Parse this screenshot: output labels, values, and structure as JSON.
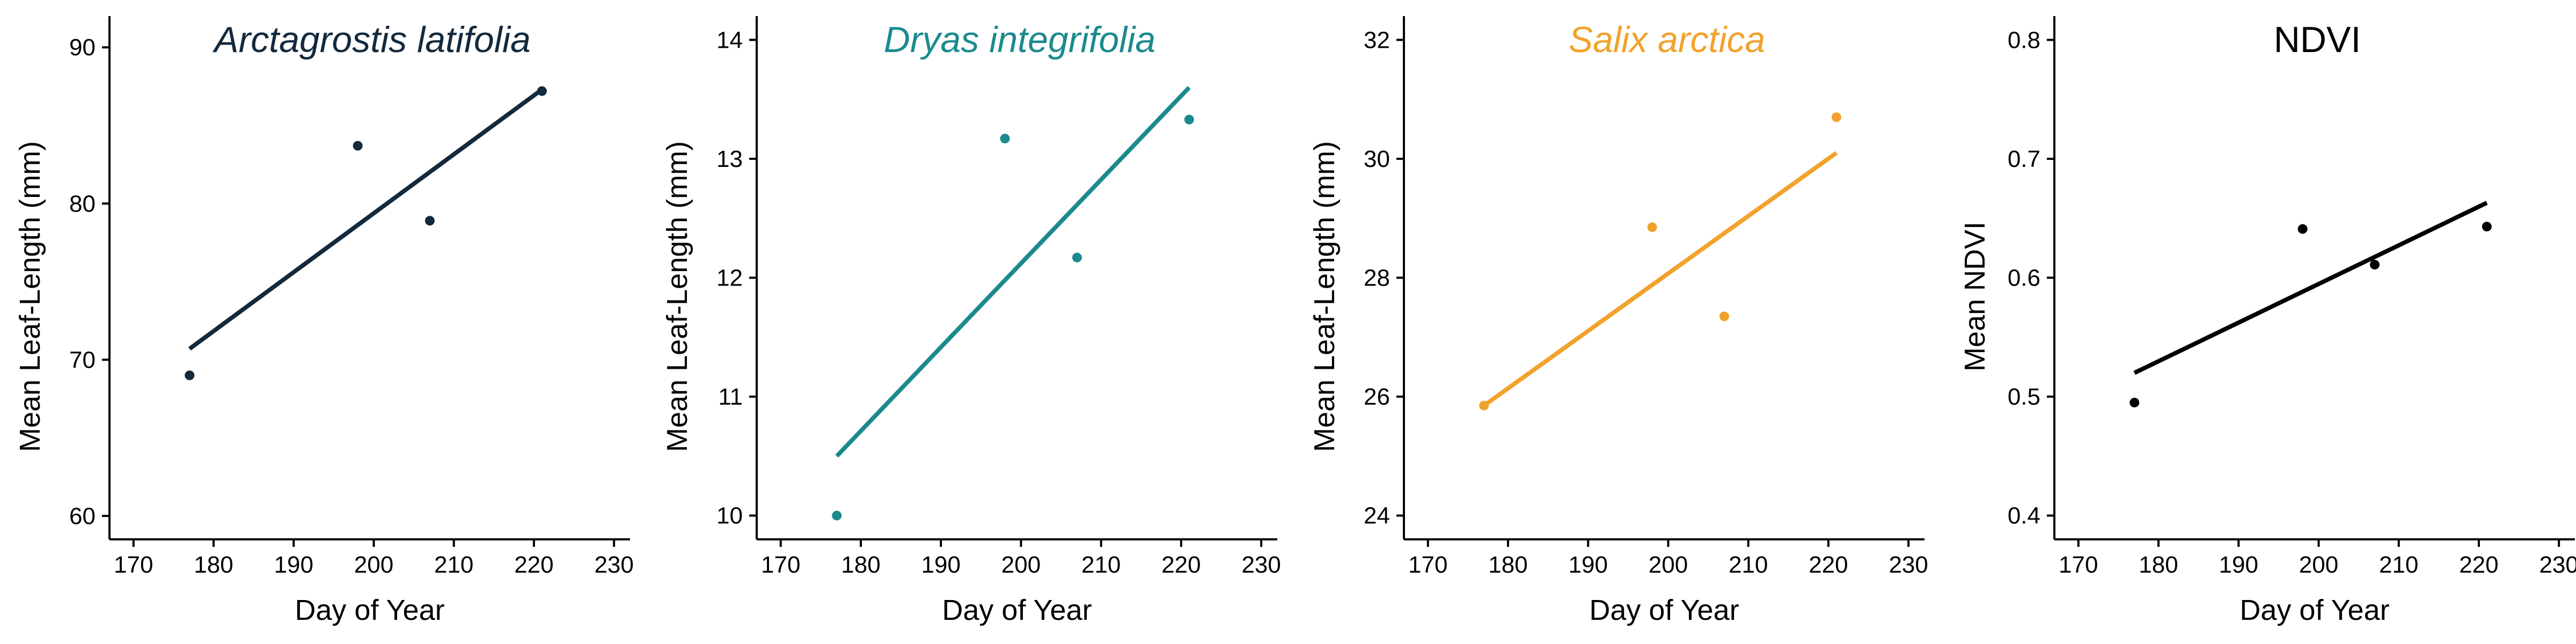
{
  "chart_data": [
    {
      "type": "scatter",
      "title": "Arctagrostis latifolia",
      "title_italic": true,
      "xlabel": "Day of Year",
      "ylabel": "Mean Leaf-Length (mm)",
      "xlim": [
        167,
        232
      ],
      "ylim": [
        58.5,
        92
      ],
      "xticks": [
        170,
        180,
        190,
        200,
        210,
        220,
        230
      ],
      "yticks": [
        60,
        70,
        80,
        90
      ],
      "color": "#13293d",
      "points": [
        {
          "x": 177,
          "y": 69.0
        },
        {
          "x": 198,
          "y": 83.7
        },
        {
          "x": 207,
          "y": 78.9
        },
        {
          "x": 221,
          "y": 87.2
        }
      ],
      "fit": {
        "x": [
          177,
          221
        ],
        "y": [
          70.7,
          87.3
        ]
      }
    },
    {
      "type": "scatter",
      "title": "Dryas integrifolia",
      "title_italic": true,
      "xlabel": "Day of Year",
      "ylabel": "Mean Leaf-Length (mm)",
      "xlim": [
        167,
        232
      ],
      "ylim": [
        9.8,
        14.2
      ],
      "xticks": [
        170,
        180,
        190,
        200,
        210,
        220,
        230
      ],
      "yticks": [
        10,
        11,
        12,
        13,
        14
      ],
      "color": "#1b8a8f",
      "points": [
        {
          "x": 177,
          "y": 10.0
        },
        {
          "x": 198,
          "y": 13.17
        },
        {
          "x": 207,
          "y": 12.17
        },
        {
          "x": 221,
          "y": 13.33
        }
      ],
      "fit": {
        "x": [
          177,
          221
        ],
        "y": [
          10.5,
          13.6
        ]
      }
    },
    {
      "type": "scatter",
      "title": "Salix arctica",
      "title_italic": true,
      "xlabel": "Day of Year",
      "ylabel": "Mean Leaf-Length (mm)",
      "xlim": [
        167,
        232
      ],
      "ylim": [
        23.6,
        32.4
      ],
      "xticks": [
        170,
        180,
        190,
        200,
        210,
        220,
        230
      ],
      "yticks": [
        24,
        26,
        28,
        30,
        32
      ],
      "color": "#f2a22c",
      "points": [
        {
          "x": 177,
          "y": 25.85
        },
        {
          "x": 198,
          "y": 28.85
        },
        {
          "x": 207,
          "y": 27.35
        },
        {
          "x": 221,
          "y": 30.7
        }
      ],
      "fit": {
        "x": [
          177,
          221
        ],
        "y": [
          25.85,
          30.1
        ]
      }
    },
    {
      "type": "scatter",
      "title": "NDVI",
      "title_italic": false,
      "xlabel": "Day of Year",
      "ylabel": "Mean NDVI",
      "xlim": [
        167,
        232
      ],
      "ylim": [
        0.38,
        0.82
      ],
      "xticks": [
        170,
        180,
        190,
        200,
        210,
        220,
        230
      ],
      "yticks": [
        0.4,
        0.5,
        0.6,
        0.7,
        0.8
      ],
      "color": "#000000",
      "points": [
        {
          "x": 177,
          "y": 0.495
        },
        {
          "x": 198,
          "y": 0.641
        },
        {
          "x": 207,
          "y": 0.611
        },
        {
          "x": 221,
          "y": 0.643
        }
      ],
      "fit": {
        "x": [
          177,
          221
        ],
        "y": [
          0.52,
          0.663
        ]
      }
    }
  ]
}
